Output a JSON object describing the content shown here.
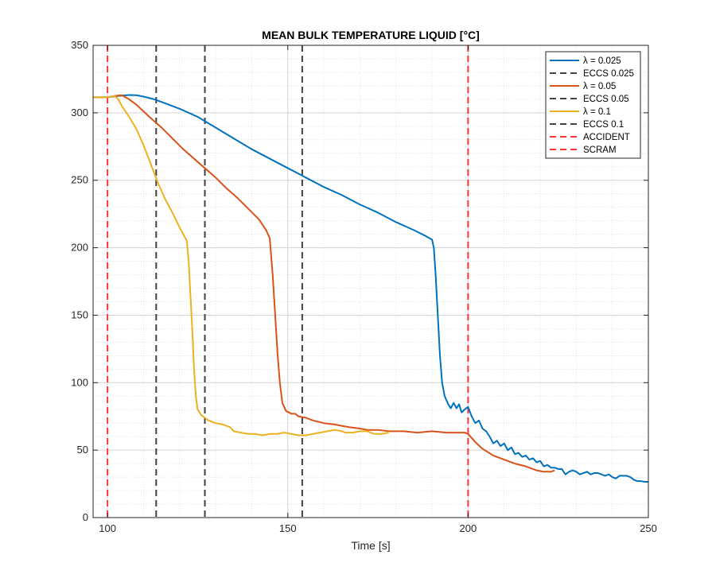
{
  "chart_data": {
    "type": "line",
    "title": "MEAN BULK TEMPERATURE LIQUID [°C]",
    "xlabel": "Time [s]",
    "ylabel": "",
    "xlim": [
      96,
      250
    ],
    "ylim": [
      0,
      350
    ],
    "xticks": [
      100,
      150,
      200,
      250
    ],
    "yticks": [
      0,
      50,
      100,
      150,
      200,
      250,
      300,
      350
    ],
    "grid": "major and minor",
    "legend_position": "top-right",
    "series": [
      {
        "name": "λ = 0.025",
        "color": "#0072BD",
        "style": "solid",
        "points": [
          [
            96,
            311.5
          ],
          [
            100,
            311.5
          ],
          [
            103,
            312.5
          ],
          [
            106,
            313.2
          ],
          [
            108,
            313
          ],
          [
            110,
            312
          ],
          [
            113,
            310
          ],
          [
            116,
            307
          ],
          [
            120,
            303
          ],
          [
            125,
            297
          ],
          [
            130,
            289
          ],
          [
            135,
            281
          ],
          [
            140,
            273
          ],
          [
            145,
            266
          ],
          [
            150,
            259
          ],
          [
            155,
            252
          ],
          [
            160,
            245
          ],
          [
            165,
            239
          ],
          [
            170,
            232
          ],
          [
            175,
            226
          ],
          [
            180,
            219
          ],
          [
            185,
            213
          ],
          [
            188,
            209
          ],
          [
            190,
            206
          ],
          [
            190.5,
            200
          ],
          [
            191,
            180
          ],
          [
            191.6,
            150
          ],
          [
            192.2,
            120
          ],
          [
            192.8,
            100
          ],
          [
            193.5,
            90
          ],
          [
            194.5,
            84
          ],
          [
            195.2,
            81
          ],
          [
            196,
            85
          ],
          [
            196.8,
            81
          ],
          [
            197.5,
            84
          ],
          [
            198.2,
            78
          ],
          [
            199,
            80
          ],
          [
            200,
            82
          ],
          [
            201,
            75
          ],
          [
            202,
            70
          ],
          [
            203,
            72
          ],
          [
            204,
            66
          ],
          [
            205,
            64
          ],
          [
            206,
            60
          ],
          [
            207,
            55
          ],
          [
            208,
            57
          ],
          [
            209,
            53
          ],
          [
            210,
            55
          ],
          [
            211,
            50
          ],
          [
            212,
            52
          ],
          [
            213,
            47
          ],
          [
            214,
            48
          ],
          [
            215,
            45
          ],
          [
            216,
            46
          ],
          [
            217,
            43
          ],
          [
            218,
            44
          ],
          [
            219,
            41
          ],
          [
            220,
            42
          ],
          [
            221,
            38
          ],
          [
            222,
            39
          ],
          [
            223,
            37
          ],
          [
            224,
            37
          ],
          [
            225,
            36
          ],
          [
            226,
            36
          ],
          [
            227,
            32
          ],
          [
            228,
            34
          ],
          [
            229,
            35
          ],
          [
            230,
            34
          ],
          [
            231,
            32
          ],
          [
            232,
            33
          ],
          [
            233,
            34
          ],
          [
            234,
            32
          ],
          [
            235,
            33
          ],
          [
            236,
            33
          ],
          [
            237,
            32
          ],
          [
            238,
            31
          ],
          [
            239,
            32
          ],
          [
            240,
            30
          ],
          [
            241,
            29
          ],
          [
            242,
            31
          ],
          [
            243,
            31
          ],
          [
            244,
            31
          ],
          [
            245,
            30
          ],
          [
            246,
            28
          ],
          [
            247,
            27
          ],
          [
            248,
            27
          ],
          [
            249,
            26.5
          ],
          [
            250,
            26.5
          ]
        ]
      },
      {
        "name": "λ = 0.05",
        "color": "#D95319",
        "style": "solid",
        "points": [
          [
            96,
            311.5
          ],
          [
            100,
            311.5
          ],
          [
            102,
            312.5
          ],
          [
            104,
            313
          ],
          [
            106,
            310
          ],
          [
            108,
            306
          ],
          [
            110,
            301
          ],
          [
            112,
            296
          ],
          [
            115,
            289
          ],
          [
            118,
            281
          ],
          [
            121,
            273
          ],
          [
            124,
            266
          ],
          [
            127,
            259
          ],
          [
            130,
            252
          ],
          [
            133,
            244
          ],
          [
            136,
            237
          ],
          [
            139,
            229
          ],
          [
            142,
            221
          ],
          [
            144,
            213
          ],
          [
            145,
            207
          ],
          [
            145.8,
            180
          ],
          [
            146.5,
            150
          ],
          [
            147.2,
            120
          ],
          [
            147.8,
            100
          ],
          [
            148.5,
            85
          ],
          [
            149.5,
            79
          ],
          [
            151,
            77
          ],
          [
            152,
            77
          ],
          [
            153,
            75
          ],
          [
            155,
            74
          ],
          [
            157,
            72
          ],
          [
            160,
            70
          ],
          [
            163,
            69
          ],
          [
            165,
            68
          ],
          [
            167,
            67
          ],
          [
            170,
            66
          ],
          [
            172,
            65
          ],
          [
            175,
            65
          ],
          [
            178,
            64
          ],
          [
            182,
            64
          ],
          [
            186,
            63
          ],
          [
            190,
            64
          ],
          [
            194,
            63
          ],
          [
            198,
            63
          ],
          [
            199,
            63
          ],
          [
            200,
            62
          ],
          [
            202,
            56
          ],
          [
            204,
            51
          ],
          [
            207,
            46
          ],
          [
            210,
            43
          ],
          [
            213,
            40
          ],
          [
            216,
            38
          ],
          [
            219,
            35
          ],
          [
            221,
            34
          ],
          [
            223,
            34
          ],
          [
            224,
            35
          ]
        ]
      },
      {
        "name": "λ = 0.1",
        "color": "#EDB120",
        "style": "solid",
        "points": [
          [
            96,
            311.5
          ],
          [
            100,
            311.5
          ],
          [
            102,
            312.5
          ],
          [
            103,
            310
          ],
          [
            104,
            305
          ],
          [
            106,
            297
          ],
          [
            108,
            288
          ],
          [
            110,
            276
          ],
          [
            112,
            262
          ],
          [
            114,
            248
          ],
          [
            116,
            236
          ],
          [
            118,
            226
          ],
          [
            120,
            215
          ],
          [
            121,
            210
          ],
          [
            122,
            205
          ],
          [
            122.5,
            190
          ],
          [
            123,
            165
          ],
          [
            123.5,
            140
          ],
          [
            124,
            110
          ],
          [
            124.5,
            90
          ],
          [
            125,
            80
          ],
          [
            126,
            76
          ],
          [
            127,
            74
          ],
          [
            128,
            72
          ],
          [
            130,
            70
          ],
          [
            132,
            69
          ],
          [
            134,
            67
          ],
          [
            135,
            64
          ],
          [
            137,
            63
          ],
          [
            139,
            62
          ],
          [
            141,
            62
          ],
          [
            143,
            61
          ],
          [
            145,
            62
          ],
          [
            147,
            62
          ],
          [
            149,
            63
          ],
          [
            151,
            62
          ],
          [
            153,
            61
          ],
          [
            155,
            61
          ],
          [
            157,
            62
          ],
          [
            159,
            63
          ],
          [
            161,
            64
          ],
          [
            163,
            65
          ],
          [
            165,
            64
          ],
          [
            166,
            63
          ],
          [
            168,
            63
          ],
          [
            170,
            64
          ],
          [
            172,
            64
          ],
          [
            174,
            62
          ],
          [
            176,
            62
          ],
          [
            178,
            63
          ]
        ]
      },
      {
        "name": "ECCS 0.025",
        "color": "#404040",
        "style": "dashed",
        "x": 113.5
      },
      {
        "name": "ECCS 0.05",
        "color": "#404040",
        "style": "dashed",
        "x": 127
      },
      {
        "name": "ECCS 0.1",
        "color": "#404040",
        "style": "dashed",
        "x": 154
      },
      {
        "name": "ACCIDENT",
        "color": "#FF3333",
        "style": "dashed",
        "x": 100
      },
      {
        "name": "SCRAM",
        "color": "#FF3333",
        "style": "dashed",
        "x": 200
      }
    ],
    "legend_order": [
      "λ = 0.025",
      "ECCS 0.025",
      "λ = 0.05",
      "ECCS 0.05",
      "λ = 0.1",
      "ECCS 0.1",
      "ACCIDENT",
      "SCRAM"
    ]
  }
}
